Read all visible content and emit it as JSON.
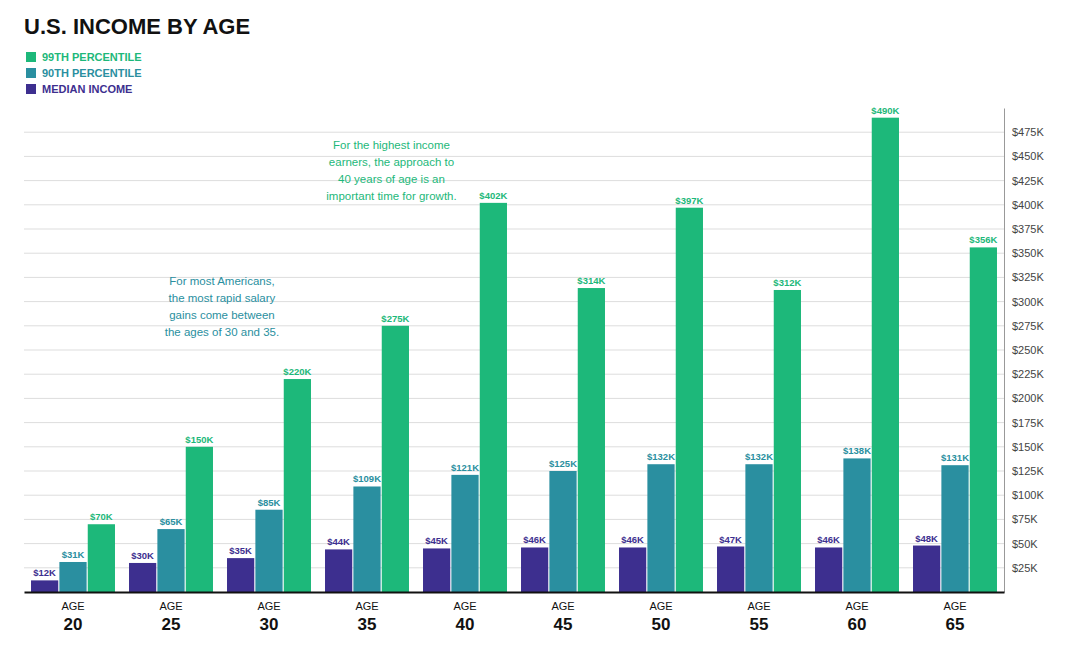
{
  "chart_data": {
    "type": "bar",
    "title": "U.S. INCOME BY AGE",
    "xlabel": "AGE",
    "categories": [
      20,
      25,
      30,
      35,
      40,
      45,
      50,
      55,
      60,
      65
    ],
    "series": [
      {
        "name": "MEDIAN INCOME",
        "color": "#3d2f8f",
        "values": [
          12000,
          30000,
          35000,
          44000,
          45000,
          46000,
          46000,
          47000,
          46000,
          48000
        ],
        "value_labels": [
          "$12K",
          "$30K",
          "$35K",
          "$44K",
          "$45K",
          "$46K",
          "$46K",
          "$47K",
          "$46K",
          "$48K"
        ]
      },
      {
        "name": "90TH PERCENTILE",
        "color": "#2a8fa0",
        "values": [
          31000,
          65000,
          85000,
          109000,
          121000,
          125000,
          132000,
          132000,
          138000,
          131000
        ],
        "value_labels": [
          "$31K",
          "$65K",
          "$85K",
          "$109K",
          "$121K",
          "$125K",
          "$132K",
          "$132K",
          "$138K",
          "$131K"
        ]
      },
      {
        "name": "99TH PERCENTILE",
        "color": "#1db87a",
        "values": [
          70000,
          150000,
          220000,
          275000,
          402000,
          314000,
          397000,
          312000,
          490000,
          356000
        ],
        "value_labels": [
          "$70K",
          "$150K",
          "$220K",
          "$275K",
          "$402K",
          "$314K",
          "$397K",
          "$312K",
          "$490K",
          "$356K"
        ]
      }
    ],
    "ylim": [
      0,
      500000
    ],
    "yticks": [
      {
        "value": 25000,
        "label": "$25K"
      },
      {
        "value": 50000,
        "label": "$50K"
      },
      {
        "value": 75000,
        "label": "$75K"
      },
      {
        "value": 100000,
        "label": "$100K"
      },
      {
        "value": 125000,
        "label": "$125K"
      },
      {
        "value": 150000,
        "label": "$150K"
      },
      {
        "value": 175000,
        "label": "$175K"
      },
      {
        "value": 200000,
        "label": "$200K"
      },
      {
        "value": 225000,
        "label": "$225K"
      },
      {
        "value": 250000,
        "label": "$250K"
      },
      {
        "value": 275000,
        "label": "$275K"
      },
      {
        "value": 300000,
        "label": "$300K"
      },
      {
        "value": 325000,
        "label": "$325K"
      },
      {
        "value": 350000,
        "label": "$350K"
      },
      {
        "value": 375000,
        "label": "$375K"
      },
      {
        "value": 400000,
        "label": "$400K"
      },
      {
        "value": 425000,
        "label": "$425K"
      },
      {
        "value": 450000,
        "label": "$450K"
      },
      {
        "value": 475000,
        "label": "$475K"
      }
    ],
    "grid": true,
    "data_labels": true,
    "legend": "upper left",
    "annotations": [
      {
        "text": "For most Americans,\nthe most rapid salary\ngains come between\nthe ages of 30 and 35.",
        "color": "#2a8fa0"
      },
      {
        "text": "For the highest income\nearners, the approach to\n40 years of age is an\nimportant time for growth.",
        "color": "#1db87a"
      }
    ]
  }
}
